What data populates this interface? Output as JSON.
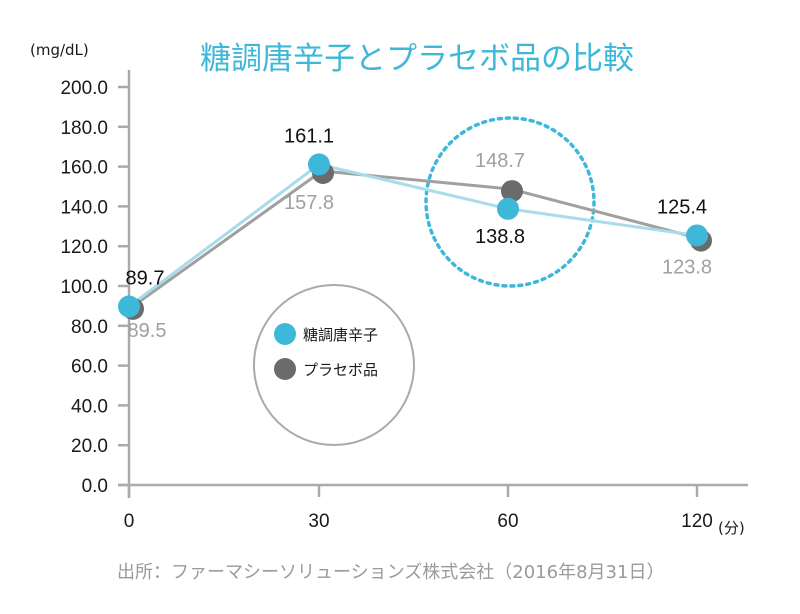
{
  "chart_data": {
    "type": "line",
    "title": "糖調唐辛子とプラセボ品の比較",
    "ylabel": "(mg/dL)",
    "xlabel": "(分)",
    "ylim": [
      0,
      200
    ],
    "yticks": [
      "200.0",
      "180.0",
      "160.0",
      "140.0",
      "120.0",
      "100.0",
      "80.0",
      "60.0",
      "40.0",
      "20.0",
      "0.0"
    ],
    "ytick_values": [
      200,
      180,
      160,
      140,
      120,
      100,
      80,
      60,
      40,
      20,
      0
    ],
    "categories": [
      "0",
      "30",
      "60",
      "120"
    ],
    "series": [
      {
        "name": "糖調唐辛子",
        "color": "#3db8d8",
        "line_color": "#a8dcea",
        "values": [
          89.7,
          161.1,
          138.8,
          125.4
        ],
        "labels": [
          "89.7",
          "161.1",
          "138.8",
          "125.4"
        ]
      },
      {
        "name": "プラセボ品",
        "color": "#6b6b6b",
        "line_color": "#a0a0a0",
        "values": [
          89.5,
          157.8,
          148.7,
          123.8
        ],
        "labels": [
          "89.5",
          "157.8",
          "148.7",
          "123.8"
        ]
      }
    ],
    "legend_position": "center-left",
    "grid": false,
    "annotation": "dashed circle highlighting 60 min point",
    "source": "出所：ファーマシーソリューションズ株式会社（2016年8月31日）"
  }
}
